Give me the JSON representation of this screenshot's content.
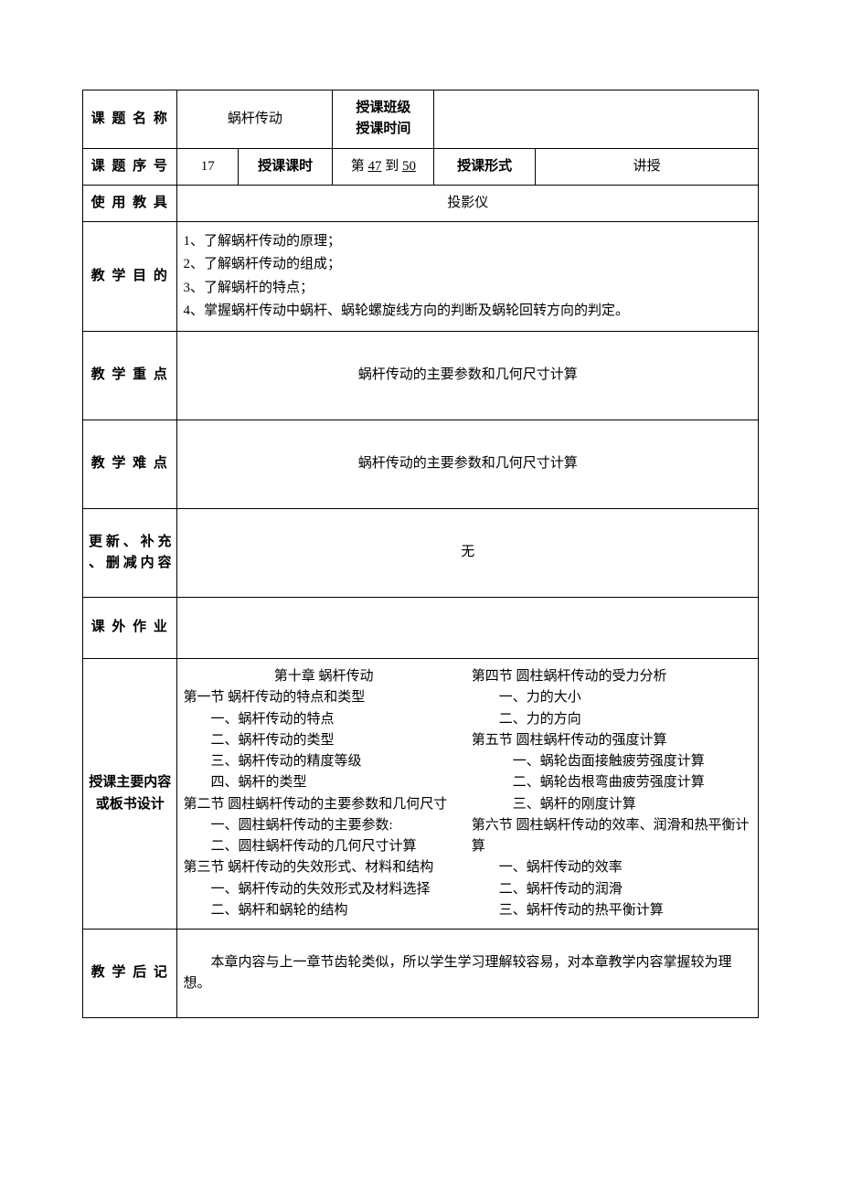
{
  "row1": {
    "label_topic_name": "课 题 名 称",
    "topic_name": "蜗杆传动",
    "label_class_time": "授课班级\n授课时间",
    "class_time_value": ""
  },
  "row2": {
    "label_topic_no": "课 题 序 号",
    "topic_no": "17",
    "label_periods": "授课课时",
    "periods_prefix": "第 ",
    "periods_from": "47",
    "periods_mid": " 到 ",
    "periods_to": "50",
    "label_form": "授课形式",
    "form": "讲授"
  },
  "row3": {
    "label_tools": "使 用 教 具",
    "tools": "投影仪"
  },
  "row4": {
    "label_goal": "教 学 目 的",
    "goals": [
      "1、了解蜗杆传动的原理；",
      "2、了解蜗杆传动的组成；",
      "3、了解蜗杆的特点；",
      "4、掌握蜗杆传动中蜗杆、蜗轮螺旋线方向的判断及蜗轮回转方向的判定。"
    ]
  },
  "row5": {
    "label_keypoint": "教 学 重 点",
    "keypoint": "蜗杆传动的主要参数和几何尺寸计算"
  },
  "row6": {
    "label_difficulty": "教 学 难 点",
    "difficulty": "蜗杆传动的主要参数和几何尺寸计算"
  },
  "row7": {
    "label_update": "更 新 、 补 充 、 删 减 内 容",
    "update": "无"
  },
  "row8": {
    "label_homework": "课 外 作 业",
    "homework": ""
  },
  "row9": {
    "label_outline": "授课主要内容或板书设计",
    "left_col": [
      {
        "cls": "title-center",
        "text": "第十章 蜗杆传动"
      },
      {
        "cls": "ind1",
        "text": "第一节 蜗杆传动的特点和类型"
      },
      {
        "cls": "ind2",
        "text": "一、蜗杆传动的特点"
      },
      {
        "cls": "ind2",
        "text": "二、蜗杆传动的类型"
      },
      {
        "cls": "ind2",
        "text": "三、蜗杆传动的精度等级"
      },
      {
        "cls": "ind2",
        "text": "四、蜗杆的类型"
      },
      {
        "cls": "ind1",
        "text": "第二节 圆柱蜗杆传动的主要参数和几何尺寸"
      },
      {
        "cls": "ind2",
        "text": "一、圆柱蜗杆传动的主要参数:"
      },
      {
        "cls": "ind2",
        "text": "二、圆柱蜗杆传动的几何尺寸计算"
      },
      {
        "cls": "ind1",
        "text": "第三节 蜗杆传动的失效形式、材料和结构"
      },
      {
        "cls": "ind2",
        "text": "一、蜗杆传动的失效形式及材料选择"
      },
      {
        "cls": "ind2",
        "text": "二、蜗杆和蜗轮的结构"
      }
    ],
    "right_col": [
      {
        "cls": "ind1",
        "text": "第四节 圆柱蜗杆传动的受力分析"
      },
      {
        "cls": "ind2",
        "text": "一、力的大小"
      },
      {
        "cls": "ind2",
        "text": "二、力的方向"
      },
      {
        "cls": "ind1",
        "text": "第五节 圆柱蜗杆传动的强度计算"
      },
      {
        "cls": "ind3",
        "text": "一、蜗轮齿面接触疲劳强度计算"
      },
      {
        "cls": "ind3",
        "text": "二、蜗轮齿根弯曲疲劳强度计算"
      },
      {
        "cls": "ind3",
        "text": "三、蜗杆的刚度计算"
      },
      {
        "cls": "ind1",
        "text": "第六节 圆柱蜗杆传动的效率、润滑和热平衡计算"
      },
      {
        "cls": "ind2",
        "text": "一、蜗杆传动的效率"
      },
      {
        "cls": "ind2",
        "text": "二、蜗杆传动的润滑"
      },
      {
        "cls": "ind2",
        "text": "三、蜗杆传动的热平衡计算"
      }
    ]
  },
  "row10": {
    "label_after": "教 学 后 记",
    "after": "本章内容与上一章节齿轮类似，所以学生学习理解较容易，对本章教学内容掌握较为理想。"
  }
}
